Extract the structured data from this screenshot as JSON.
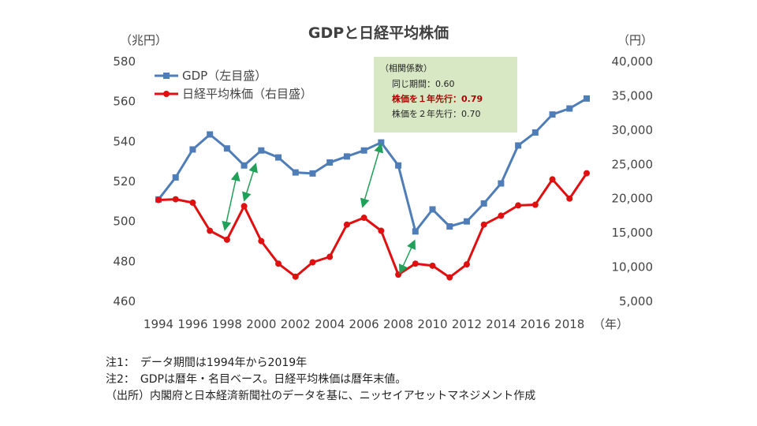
{
  "chart_data": {
    "type": "line",
    "title": "GDPと日経平均株価",
    "left_axis_unit": "（兆円）",
    "right_axis_unit": "（円）",
    "x_unit": "（年）",
    "x": [
      1994,
      1995,
      1996,
      1997,
      1998,
      1999,
      2000,
      2001,
      2002,
      2003,
      2004,
      2005,
      2006,
      2007,
      2008,
      2009,
      2010,
      2011,
      2012,
      2013,
      2014,
      2015,
      2016,
      2017,
      2018,
      2019
    ],
    "x_tick_labels": [
      "1994",
      "1996",
      "1998",
      "2000",
      "2002",
      "2004",
      "2006",
      "2008",
      "2010",
      "2012",
      "2014",
      "2016",
      "2018"
    ],
    "y_left_ticks": [
      "580",
      "560",
      "540",
      "520",
      "500",
      "480",
      "460"
    ],
    "y_right_ticks": [
      "40,000",
      "35,000",
      "30,000",
      "25,000",
      "20,000",
      "15,000",
      "10,000",
      "5,000"
    ],
    "ylim_left": [
      460,
      580
    ],
    "ylim_right": [
      5000,
      40000
    ],
    "series": [
      {
        "name": "GDP（左目盛）",
        "axis": "left",
        "color": "#4f7db8",
        "marker": "square",
        "values": [
          511,
          522,
          536,
          543.5,
          536.5,
          528,
          535.5,
          532,
          524.5,
          524,
          529.5,
          532.5,
          535.5,
          539.5,
          528,
          495,
          506,
          497.5,
          500,
          509,
          519,
          538,
          544.5,
          553.5,
          556.5,
          561.5
        ]
      },
      {
        "name": "日経平均株価（右目盛）",
        "axis": "right",
        "color": "#e01010",
        "marker": "circle",
        "values": [
          19800,
          19900,
          19400,
          15300,
          14000,
          18900,
          13800,
          10500,
          8600,
          10700,
          11500,
          16200,
          17200,
          15300,
          8900,
          10500,
          10200,
          8500,
          10400,
          16200,
          17500,
          19000,
          19100,
          22800,
          20000,
          23700
        ]
      }
    ],
    "annotation": {
      "heading": "（相関係数）",
      "line1": "同じ期間：0.60",
      "line2": "株価を１年先行：0.79",
      "line3": "株価を２年先行：0.70"
    }
  },
  "notes": {
    "note1": "注1：　データ期間は1994年から2019年",
    "note2": "注2：　GDPは暦年・名目ベース。日経平均株価は暦年末値。",
    "source": "（出所）内閣府と日本経済新聞社のデータを基に、ニッセイアセットマネジメント作成"
  },
  "colors": {
    "gdp": "#4f7db8",
    "nikkei": "#e01010",
    "arrow": "#21a05a",
    "box_bg": "#d9e8c4",
    "box_hl": "#b00000"
  }
}
